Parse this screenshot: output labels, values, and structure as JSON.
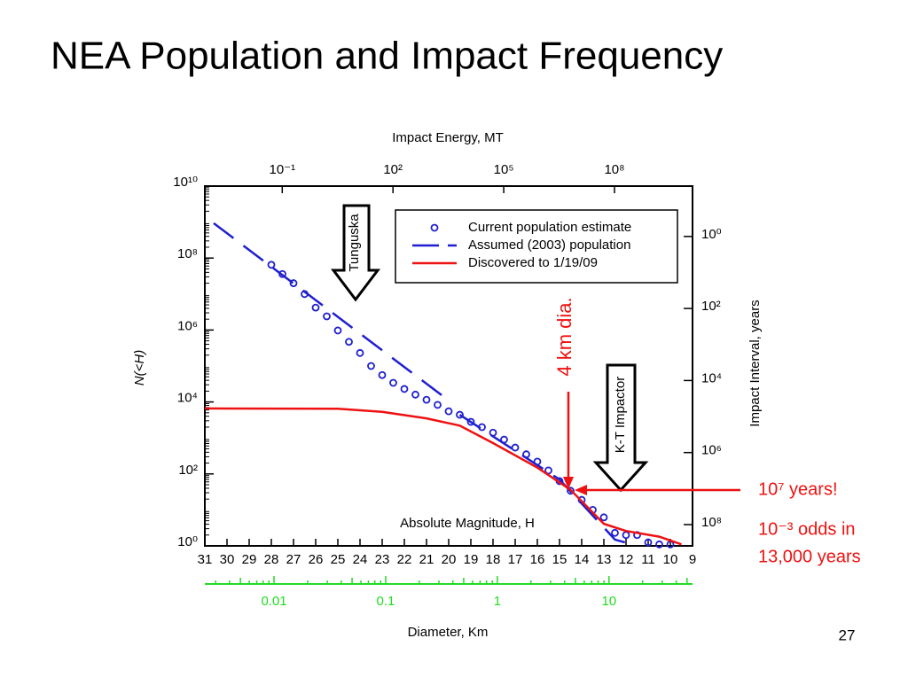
{
  "title": "NEA Population and Impact Frequency",
  "page_number": "27",
  "chart_data": {
    "type": "line",
    "ylabel": "N(<H)",
    "xlabel": "Absolute Magnitude, H",
    "x2label": "Impact Energy, MT",
    "y2label": "Impact Interval, years",
    "x3label": "Diameter, Km",
    "xlim": [
      31,
      9
    ],
    "xticks": [
      31,
      30,
      29,
      28,
      27,
      26,
      25,
      24,
      23,
      22,
      21,
      20,
      19,
      18,
      17,
      16,
      15,
      14,
      13,
      12,
      11,
      10,
      9
    ],
    "ylim": [
      1,
      10000000000
    ],
    "ylog": true,
    "yticks": [
      {
        "value": 1,
        "label": "10⁰"
      },
      {
        "value": 100,
        "label": "10²"
      },
      {
        "value": 10000,
        "label": "10⁴"
      },
      {
        "value": 1000000,
        "label": "10⁶"
      },
      {
        "value": 100000000,
        "label": "10⁸"
      },
      {
        "value": 10000000000,
        "label": "10¹⁰"
      }
    ],
    "x2lim": [
      0.0008,
      13000000000
    ],
    "x2log": true,
    "x2ticks": [
      {
        "value": 0.1,
        "label": "10⁻¹"
      },
      {
        "value": 100,
        "label": "10²"
      },
      {
        "value": 100000,
        "label": "10⁵"
      },
      {
        "value": 100000000,
        "label": "10⁸"
      }
    ],
    "y2lim": [
      390000000,
      0.04
    ],
    "y2log": true,
    "y2ticks": [
      {
        "value": 1,
        "label": "10⁰"
      },
      {
        "value": 100,
        "label": "10²"
      },
      {
        "value": 10000,
        "label": "10⁴"
      },
      {
        "value": 1000000,
        "label": "10⁶"
      },
      {
        "value": 100000000,
        "label": "10⁸"
      }
    ],
    "x3lim": [
      0.0024,
      56
    ],
    "x3log": true,
    "x3color": "#22dd22",
    "x3ticks": [
      0.01,
      0.1,
      1,
      10
    ],
    "series": [
      {
        "name": "Current population estimate",
        "color": "#1f1fd0",
        "style": "markers",
        "x": [
          28,
          27.5,
          27,
          26.5,
          26,
          25.5,
          25,
          24.5,
          24,
          23.5,
          23,
          22.5,
          22,
          21.5,
          21,
          20.5,
          20,
          19.5,
          19,
          18.5,
          18,
          17.5,
          17,
          16.5,
          16,
          15.5,
          15,
          14.5,
          14,
          13.5,
          13,
          12.5,
          12,
          11.5,
          11,
          10.5,
          10
        ],
        "values": [
          65000000,
          36000000,
          20000000,
          10000000,
          4200000,
          2400000,
          970000,
          470000,
          230000,
          100000,
          56000,
          34000,
          23000,
          16000,
          11500,
          8300,
          5500,
          4400,
          2800,
          2000,
          1400,
          900,
          540,
          350,
          220,
          125,
          63,
          34,
          19,
          10,
          6.2,
          2.3,
          2,
          2,
          1.25,
          1.1,
          1.1
        ]
      },
      {
        "name": "Assumed (2003) population",
        "color": "#1f1fd0",
        "style": "dashed",
        "x": [
          30.6,
          20,
          null,
          19.5,
          15,
          12.5,
          11.5
        ],
        "values": [
          930000000,
          11000,
          null,
          4400,
          70,
          1.5,
          1
        ]
      },
      {
        "name": "Discovered to 1/19/09",
        "color": "#ee1111",
        "style": "solid",
        "x": [
          31,
          25,
          23,
          21,
          19.5,
          18,
          16,
          14.5,
          13,
          12,
          10.5,
          9.5
        ],
        "values": [
          6600,
          6500,
          5300,
          3500,
          2200,
          720,
          150,
          36,
          4.1,
          2.6,
          1.8,
          1.1
        ]
      }
    ],
    "annotations": {
      "tunguska": "Tunguska",
      "kt": "K-T Impactor",
      "diameter": "4 km dia.",
      "years": "10⁷ years!",
      "odds1": "10⁻³ odds in",
      "odds2": "13,000 years"
    },
    "annotation_color": "#ee1111"
  }
}
